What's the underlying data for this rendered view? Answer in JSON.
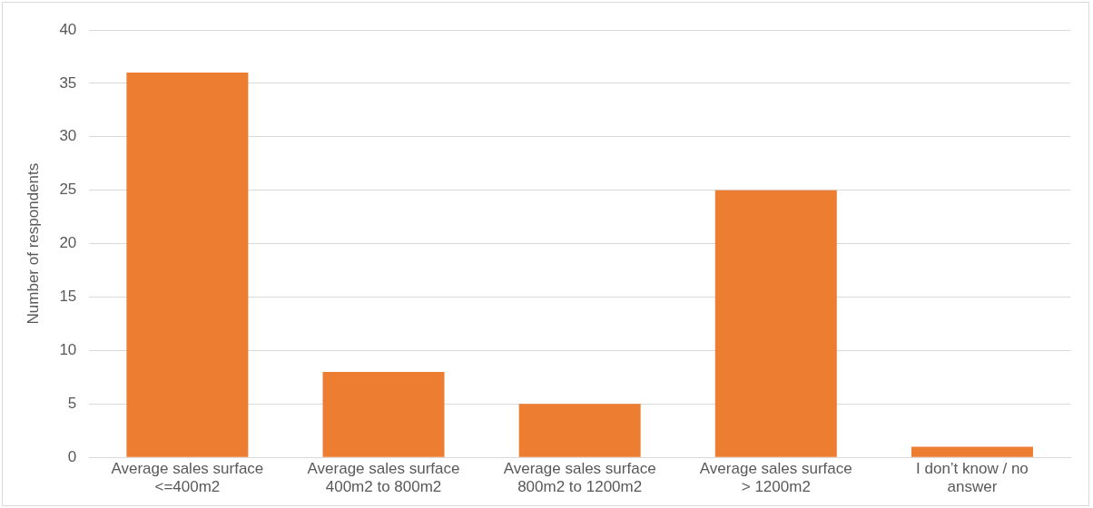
{
  "chart_data": {
    "type": "bar",
    "ylabel": "Number of respondents",
    "categories": [
      "Average sales surface <=400m2",
      "Average sales surface 400m2 to 800m2",
      "Average sales surface 800m2 to 1200m2",
      "Average sales surface > 1200m2",
      "I don’t know / no answer"
    ],
    "values": [
      36,
      8,
      5,
      25,
      1
    ],
    "color": "#ed7d31",
    "ylim": [
      0,
      40
    ],
    "yticks": [
      0,
      5,
      10,
      15,
      20,
      25,
      30,
      35,
      40
    ],
    "grid": "y"
  }
}
